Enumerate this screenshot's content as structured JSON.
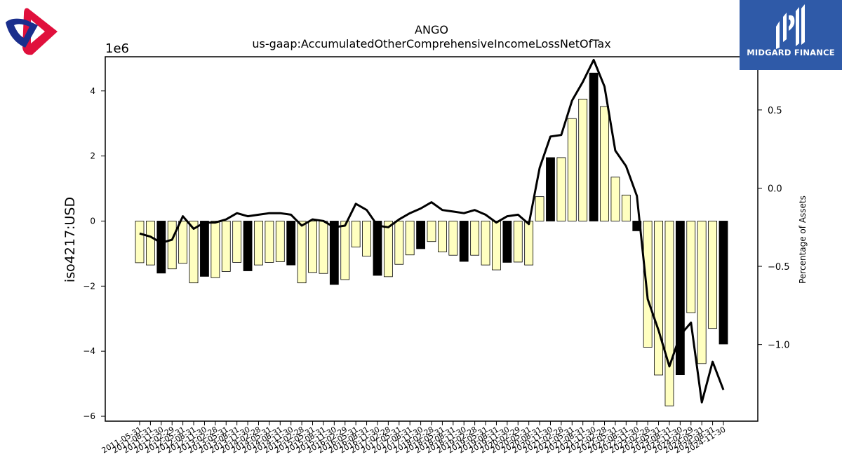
{
  "brand": {
    "name": "MIDGARD FINANCE"
  },
  "colors": {
    "bar_normal": "#ffffc0",
    "bar_highlight": "#000000",
    "line": "#000000",
    "brand_bg": "#2f5aa8"
  },
  "chart_data": {
    "type": "bar",
    "title": "ANGO",
    "subtitle": "us-gaap:AccumulatedOtherComprehensiveIncomeLossNetOfTax",
    "ylabel": "iso4217:USD",
    "y2label": "Percentage of Assets",
    "y_multiplier": "1e6",
    "ylim": [
      -6.15,
      5.05
    ],
    "y2lim": [
      -1.49,
      0.84
    ],
    "yticks": [
      "−6",
      "−4",
      "−2",
      "0",
      "2",
      "4"
    ],
    "y2ticks": [
      "−1.0",
      "−0.5",
      "0.0",
      "0.5"
    ],
    "categories": [
      "2011-05-31",
      "2011-08-31",
      "2011-11-30",
      "2012-02-29",
      "2012-05-31",
      "2012-08-31",
      "2012-11-30",
      "2013-02-28",
      "2013-05-31",
      "2013-08-31",
      "2013-11-30",
      "2014-02-28",
      "2014-05-31",
      "2014-08-31",
      "2014-11-30",
      "2015-02-28",
      "2015-05-31",
      "2015-08-31",
      "2015-11-30",
      "2016-02-29",
      "2016-05-31",
      "2016-08-31",
      "2016-11-30",
      "2017-02-28",
      "2017-05-31",
      "2017-08-31",
      "2017-11-30",
      "2018-02-28",
      "2018-05-31",
      "2018-08-31",
      "2018-11-30",
      "2019-02-28",
      "2019-05-31",
      "2019-08-31",
      "2019-11-30",
      "2020-02-29",
      "2020-05-31",
      "2020-08-31",
      "2020-11-30",
      "2021-02-28",
      "2021-05-31",
      "2021-08-31",
      "2021-11-30",
      "2022-02-28",
      "2022-05-31",
      "2022-08-31",
      "2022-11-30",
      "2023-02-28",
      "2023-05-31",
      "2023-08-31",
      "2023-11-30",
      "2024-02-29",
      "2024-05-31",
      "2024-08-31",
      "2024-11-30"
    ],
    "series": [
      {
        "values": [
          -1.28,
          -1.35,
          -1.6,
          -1.47,
          -1.3,
          -1.9,
          -1.7,
          -1.74,
          -1.55,
          -1.27,
          -1.53,
          -1.35,
          -1.27,
          -1.25,
          -1.35,
          -1.9,
          -1.58,
          -1.61,
          -1.95,
          -1.8,
          -0.8,
          -1.08,
          -1.67,
          -1.71,
          -1.33,
          -1.04,
          -0.85,
          -0.63,
          -0.95,
          -1.05,
          -1.24,
          -1.05,
          -1.35,
          -1.5,
          -1.27,
          -1.26,
          -1.35,
          0.75,
          1.95,
          1.95,
          3.15,
          3.75,
          4.55,
          3.52,
          1.35,
          0.8,
          -0.3,
          -3.88,
          -4.73,
          -5.68,
          -4.72,
          -2.82,
          -4.38,
          -3.3,
          -3.78
        ],
        "highlight": [
          false,
          false,
          true,
          false,
          false,
          false,
          true,
          false,
          false,
          false,
          true,
          false,
          false,
          false,
          true,
          false,
          false,
          false,
          true,
          false,
          false,
          false,
          true,
          false,
          false,
          false,
          true,
          false,
          false,
          false,
          true,
          false,
          false,
          false,
          true,
          false,
          false,
          false,
          true,
          false,
          false,
          false,
          true,
          false,
          false,
          false,
          true,
          false,
          false,
          false,
          true,
          false,
          false,
          false,
          true
        ]
      },
      {
        "name": "Percentage of Assets",
        "axis": "right",
        "values": [
          -0.29,
          -0.31,
          -0.35,
          -0.33,
          -0.18,
          -0.26,
          -0.22,
          -0.22,
          -0.2,
          -0.16,
          -0.18,
          -0.17,
          -0.16,
          -0.16,
          -0.17,
          -0.24,
          -0.2,
          -0.21,
          -0.25,
          -0.24,
          -0.1,
          -0.14,
          -0.24,
          -0.25,
          -0.2,
          -0.16,
          -0.13,
          -0.09,
          -0.14,
          -0.15,
          -0.16,
          -0.14,
          -0.17,
          -0.22,
          -0.18,
          -0.17,
          -0.23,
          0.13,
          0.33,
          0.34,
          0.56,
          0.68,
          0.82,
          0.65,
          0.24,
          0.14,
          -0.05,
          -0.71,
          -0.91,
          -1.14,
          -0.94,
          -0.86,
          -1.37,
          -1.11,
          -1.29
        ]
      }
    ]
  }
}
